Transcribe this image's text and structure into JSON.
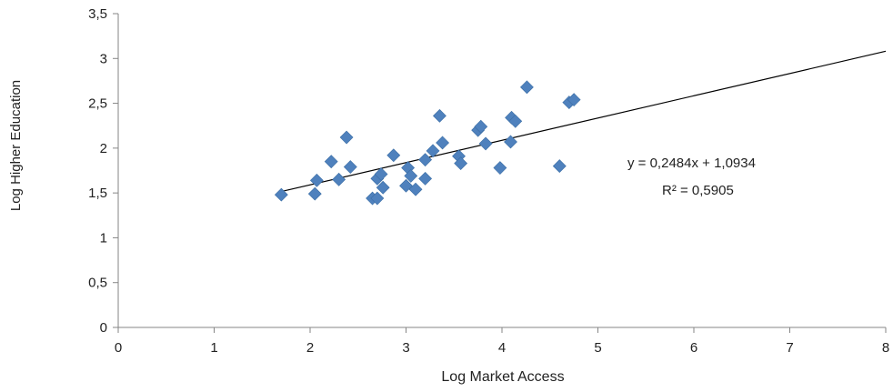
{
  "chart_data": {
    "type": "scatter",
    "xlabel": "Log Market Access",
    "ylabel": "Log Higher Education",
    "xlim": [
      0,
      8
    ],
    "ylim": [
      0,
      3.5
    ],
    "x_ticks": [
      0,
      1,
      2,
      3,
      4,
      5,
      6,
      7,
      8
    ],
    "y_ticks": [
      0,
      0.5,
      1,
      1.5,
      2,
      2.5,
      3,
      3.5
    ],
    "x_tick_labels": [
      "0",
      "1",
      "2",
      "3",
      "4",
      "5",
      "6",
      "7",
      "8"
    ],
    "y_tick_labels": [
      "0",
      "0,5",
      "1",
      "1,5",
      "2",
      "2,5",
      "3",
      "3,5"
    ],
    "grid": false,
    "marker": "diamond",
    "series": [
      {
        "color": "#4f81bd",
        "points": [
          {
            "x": 1.7,
            "y": 1.48
          },
          {
            "x": 2.05,
            "y": 1.49
          },
          {
            "x": 2.07,
            "y": 1.64
          },
          {
            "x": 2.22,
            "y": 1.85
          },
          {
            "x": 2.3,
            "y": 1.65
          },
          {
            "x": 2.38,
            "y": 2.12
          },
          {
            "x": 2.42,
            "y": 1.79
          },
          {
            "x": 2.65,
            "y": 1.44
          },
          {
            "x": 2.7,
            "y": 1.44
          },
          {
            "x": 2.7,
            "y": 1.66
          },
          {
            "x": 2.74,
            "y": 1.71
          },
          {
            "x": 2.76,
            "y": 1.56
          },
          {
            "x": 2.87,
            "y": 1.92
          },
          {
            "x": 3.0,
            "y": 1.58
          },
          {
            "x": 3.02,
            "y": 1.78
          },
          {
            "x": 3.05,
            "y": 1.69
          },
          {
            "x": 3.1,
            "y": 1.54
          },
          {
            "x": 3.2,
            "y": 1.66
          },
          {
            "x": 3.2,
            "y": 1.87
          },
          {
            "x": 3.28,
            "y": 1.97
          },
          {
            "x": 3.35,
            "y": 2.36
          },
          {
            "x": 3.38,
            "y": 2.06
          },
          {
            "x": 3.55,
            "y": 1.91
          },
          {
            "x": 3.57,
            "y": 1.83
          },
          {
            "x": 3.75,
            "y": 2.2
          },
          {
            "x": 3.78,
            "y": 2.24
          },
          {
            "x": 3.83,
            "y": 2.05
          },
          {
            "x": 3.98,
            "y": 1.78
          },
          {
            "x": 4.09,
            "y": 2.07
          },
          {
            "x": 4.1,
            "y": 2.34
          },
          {
            "x": 4.14,
            "y": 2.3
          },
          {
            "x": 4.26,
            "y": 2.68
          },
          {
            "x": 4.6,
            "y": 1.8
          },
          {
            "x": 4.7,
            "y": 2.51
          },
          {
            "x": 4.75,
            "y": 2.54
          }
        ]
      }
    ],
    "trendline": {
      "slope": 0.2484,
      "intercept": 1.0934,
      "x_range": [
        1.7,
        8
      ],
      "color": "#000000",
      "equation": "y = 0,2484x + 1,0934",
      "r_squared": "R² = 0,5905"
    }
  }
}
